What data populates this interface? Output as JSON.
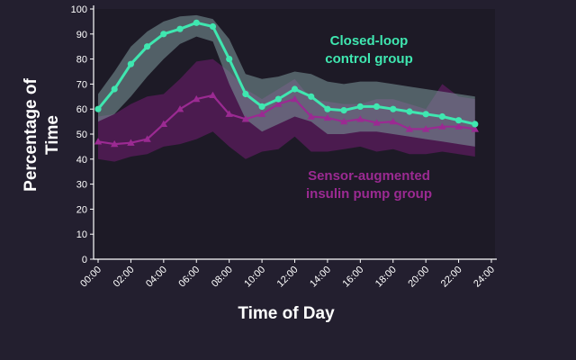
{
  "chart_data": {
    "type": "line",
    "xlabel": "Time of Day",
    "ylabel": "Percentage of Time",
    "ylabel_lines": [
      "Percentage of",
      "Time"
    ],
    "x_ticks": [
      "00:00",
      "02:00",
      "04:00",
      "06:00",
      "08:00",
      "10:00",
      "12:00",
      "14:00",
      "16:00",
      "18:00",
      "20:00",
      "22:00",
      "24:00"
    ],
    "y_ticks": [
      0,
      10,
      20,
      30,
      40,
      50,
      60,
      70,
      80,
      90,
      100
    ],
    "xlim": [
      0,
      24
    ],
    "ylim": [
      0,
      100
    ],
    "grid": false,
    "colors": {
      "background": "#231f2f",
      "plot_background": "#1d1a26",
      "closed_loop": "#3fe7b0",
      "closed_loop_band": "#7e9b9c",
      "pump": "#9b2a92",
      "pump_band": "#6b1c6a"
    },
    "series": [
      {
        "name": "Closed-loop control group",
        "label_lines": [
          "Closed-loop",
          "control group"
        ],
        "marker": "circle",
        "x": [
          0,
          1,
          2,
          3,
          4,
          5,
          6,
          7,
          8,
          9,
          10,
          11,
          12,
          13,
          14,
          15,
          16,
          17,
          18,
          19,
          20,
          21,
          22,
          23
        ],
        "values": [
          60,
          68,
          78,
          85,
          90,
          92,
          94.5,
          93,
          80,
          66,
          61,
          64,
          68,
          65,
          60,
          59.5,
          61,
          61,
          60,
          59,
          58,
          57,
          55.5,
          54
        ],
        "lower": [
          55,
          58,
          65,
          73,
          80,
          86,
          89,
          87,
          70,
          56,
          51,
          54,
          57,
          55,
          50,
          50,
          51,
          51,
          50,
          49,
          48,
          47,
          46,
          45
        ],
        "upper": [
          66,
          75,
          85,
          91,
          95,
          97,
          97.5,
          96,
          88,
          74,
          72,
          73,
          75,
          74,
          71,
          70,
          71,
          71,
          70,
          69,
          68,
          67,
          66,
          65
        ]
      },
      {
        "name": "Sensor-augmented insulin pump group",
        "label_lines": [
          "Sensor-augmented",
          "insulin pump group"
        ],
        "marker": "triangle",
        "x": [
          0,
          1,
          2,
          3,
          4,
          5,
          6,
          7,
          8,
          9,
          10,
          11,
          12,
          13,
          14,
          15,
          16,
          17,
          18,
          19,
          20,
          21,
          22,
          23
        ],
        "values": [
          47,
          46,
          46.5,
          48,
          54,
          60,
          64,
          65.5,
          58,
          56,
          58,
          62,
          64,
          57,
          56.5,
          55,
          56,
          54.5,
          55,
          52,
          52,
          53,
          53,
          52
        ],
        "lower": [
          40,
          39,
          41,
          42,
          45,
          46,
          48,
          51,
          45,
          40,
          43,
          44,
          49,
          43,
          43,
          44,
          45,
          43,
          44,
          42,
          42,
          43,
          42,
          41
        ],
        "upper": [
          57,
          58,
          62,
          65,
          66,
          72,
          79,
          80,
          75,
          68,
          64,
          68,
          72,
          64,
          63,
          62,
          62,
          64,
          64,
          62,
          60,
          70,
          65,
          64
        ]
      }
    ]
  }
}
